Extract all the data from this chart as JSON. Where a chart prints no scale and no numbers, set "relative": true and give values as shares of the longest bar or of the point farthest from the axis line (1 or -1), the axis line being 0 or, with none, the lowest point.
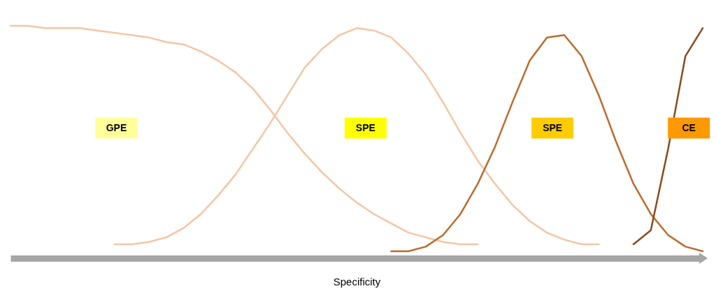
{
  "chart_data": {
    "type": "line",
    "relative": true,
    "xlabel": "Specificity",
    "categories": [
      null,
      null,
      null,
      null,
      null,
      null,
      null,
      null,
      null,
      null,
      null,
      null,
      null,
      null,
      null,
      null,
      null,
      null,
      null,
      null,
      null,
      null,
      null,
      null,
      null,
      null,
      null,
      null,
      null,
      null,
      null,
      null,
      null,
      null,
      null,
      null,
      null,
      null,
      null,
      null,
      null
    ],
    "series": [
      {
        "color": "#f5c6a5",
        "values": [
          1.0,
          1.0,
          0.99,
          0.99,
          0.99,
          0.98,
          0.97,
          0.96,
          0.95,
          0.93,
          0.92,
          0.89,
          0.85,
          0.8,
          0.73,
          0.64,
          0.54,
          0.45,
          0.37,
          0.3,
          0.24,
          0.19,
          0.15,
          0.11,
          0.09,
          0.07,
          0.06,
          0.06,
          null,
          null,
          null,
          null,
          null,
          null,
          null,
          null,
          null,
          null,
          null,
          null,
          null
        ]
      },
      {
        "color": "#f5c6a5",
        "values": [
          null,
          null,
          null,
          null,
          null,
          null,
          0.06,
          0.06,
          0.07,
          0.09,
          0.13,
          0.19,
          0.27,
          0.36,
          0.47,
          0.58,
          0.7,
          0.82,
          0.9,
          0.96,
          0.99,
          0.98,
          0.95,
          0.88,
          0.79,
          0.67,
          0.54,
          0.42,
          0.32,
          0.23,
          0.16,
          0.11,
          0.08,
          0.06,
          0.06,
          null,
          null,
          null,
          null,
          null,
          null
        ]
      },
      {
        "color": "#bd6a2c",
        "values": [
          null,
          null,
          null,
          null,
          null,
          null,
          null,
          null,
          null,
          null,
          null,
          null,
          null,
          null,
          null,
          null,
          null,
          null,
          null,
          null,
          null,
          null,
          0.03,
          0.03,
          0.05,
          0.1,
          0.19,
          0.32,
          0.48,
          0.67,
          0.85,
          0.95,
          0.96,
          0.87,
          0.7,
          0.5,
          0.32,
          0.19,
          0.1,
          0.05,
          0.03
        ]
      },
      {
        "color": "#8b4a1c",
        "values": [
          null,
          null,
          null,
          null,
          null,
          null,
          null,
          null,
          null,
          null,
          null,
          null,
          null,
          null,
          null,
          null,
          null,
          null,
          null,
          null,
          null,
          null,
          null,
          null,
          null,
          null,
          null,
          null,
          null,
          null,
          null,
          null,
          null,
          null,
          null,
          null,
          0.06,
          0.12,
          0.47,
          0.87,
          0.99
        ]
      }
    ],
    "annotations": [
      "GPE",
      "SPE",
      "SPE",
      "CE"
    ]
  }
}
